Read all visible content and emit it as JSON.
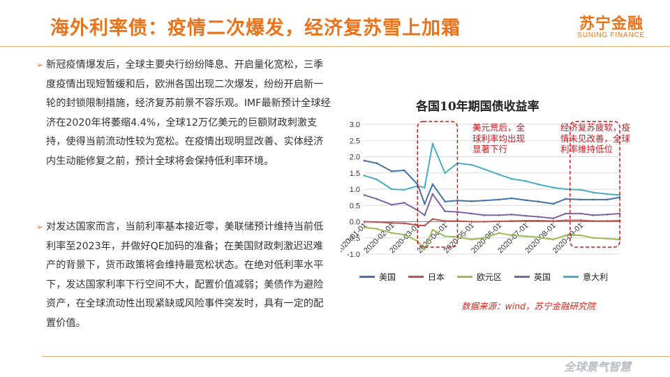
{
  "title": "海外利率债：疫情二次爆发，经济复苏雪上加霜",
  "logo": {
    "cn": "苏宁金融",
    "en": "SUNING FINANCE"
  },
  "paragraphs": [
    "新冠疫情爆发后，全球主要央行纷纷降息、开启量化宽松，三季度疫情出现短暂缓和后，欧洲各国出现二次爆发，纷纷开启新一轮的封锁限制措施，经济复苏前景不容乐观。IMF最新预计全球经济在2020年将萎缩4.4%，全球12万亿美元的巨额财政刺激支持，使得当前流动性较为宽松。在疫情出现明显改善、实体经济内生动能修复之前，预计全球将会保持低利率环境。",
    "对发达国家而言，当前利率基本接近零，美联储预计维持当前低利率至2023年，并做好QE加码的准备；在美国财政刺激迟迟难产的背景下，货币政策将会维持最宽松状态。在绝对低利率水平下，发达国家利率下行空间不大，配置价值减弱；美债作为避险资产，在全球流动性出现紧缺或风险事件突发时，具有一定的配置价值。"
  ],
  "source": "数据来源：wind，苏宁金融研究院",
  "watermark": "全球景气智慧",
  "colors": {
    "accent": "#e8731a",
    "annotation": "#c9181e"
  },
  "chart_data": {
    "type": "line",
    "title": "各国10年期国债收益率",
    "x": [
      "2020-01-01",
      "2020-01-15",
      "2020-02-01",
      "2020-02-15",
      "2020-03-01",
      "2020-03-09",
      "2020-03-18",
      "2020-04-01",
      "2020-04-15",
      "2020-05-01",
      "2020-05-15",
      "2020-06-01",
      "2020-06-15",
      "2020-07-01",
      "2020-07-15",
      "2020-08-01",
      "2020-08-15",
      "2020-09-01",
      "2020-09-15",
      "2020-10-01",
      "2020-10-15"
    ],
    "x_tick_labels": [
      "2020-01-01",
      "2020-02-01",
      "2020-03-01",
      "2020-04-01",
      "2020-05-01",
      "2020-06-01",
      "2020-07-01",
      "2020-08-01",
      "2020-09-01"
    ],
    "ylim": [
      -1.0,
      3.0
    ],
    "yticks": [
      "3.0",
      "2.5",
      "2.0",
      "1.5",
      "1.0",
      "0.5",
      "0.0",
      "-0.5",
      "-1.0"
    ],
    "grid": true,
    "legend_position": "bottom",
    "series": [
      {
        "name": "美国",
        "color": "#4472a8",
        "values": [
          1.88,
          1.8,
          1.55,
          1.58,
          1.15,
          0.55,
          1.15,
          0.62,
          0.65,
          0.63,
          0.65,
          0.68,
          0.72,
          0.66,
          0.62,
          0.55,
          0.7,
          0.68,
          0.68,
          0.68,
          0.75
        ]
      },
      {
        "name": "日本",
        "color": "#c0504d",
        "values": [
          0.0,
          -0.01,
          -0.04,
          -0.05,
          -0.11,
          -0.12,
          0.08,
          0.02,
          0.02,
          0.0,
          0.0,
          0.01,
          0.02,
          0.03,
          0.03,
          0.02,
          0.04,
          0.04,
          0.02,
          0.02,
          0.03
        ]
      },
      {
        "name": "欧元区",
        "color": "#9bbb59",
        "values": [
          -0.18,
          -0.22,
          -0.35,
          -0.4,
          -0.6,
          -0.85,
          -0.25,
          -0.45,
          -0.47,
          -0.55,
          -0.5,
          -0.35,
          -0.42,
          -0.45,
          -0.48,
          -0.55,
          -0.42,
          -0.42,
          -0.5,
          -0.52,
          -0.55
        ]
      },
      {
        "name": "英国",
        "color": "#8064a2",
        "values": [
          0.82,
          0.7,
          0.52,
          0.58,
          0.35,
          0.2,
          0.85,
          0.32,
          0.3,
          0.25,
          0.2,
          0.2,
          0.22,
          0.18,
          0.15,
          0.1,
          0.25,
          0.25,
          0.2,
          0.22,
          0.25
        ]
      },
      {
        "name": "意大利",
        "color": "#4bacc6",
        "values": [
          1.42,
          1.3,
          1.0,
          0.98,
          1.1,
          1.05,
          2.4,
          1.5,
          1.8,
          1.75,
          1.62,
          1.45,
          1.32,
          1.25,
          1.15,
          1.05,
          1.0,
          0.98,
          0.9,
          0.85,
          0.82
        ]
      }
    ],
    "annotations": [
      {
        "text": "美元荒后，全球利率均出现显著下行",
        "x_range": [
          "2020-03-01",
          "2020-04-15"
        ]
      },
      {
        "text": "经济复苏疲软，疫情未见改善，全球利率维持低位",
        "x_range": [
          "2020-08-20",
          "2020-10-15"
        ]
      }
    ]
  }
}
